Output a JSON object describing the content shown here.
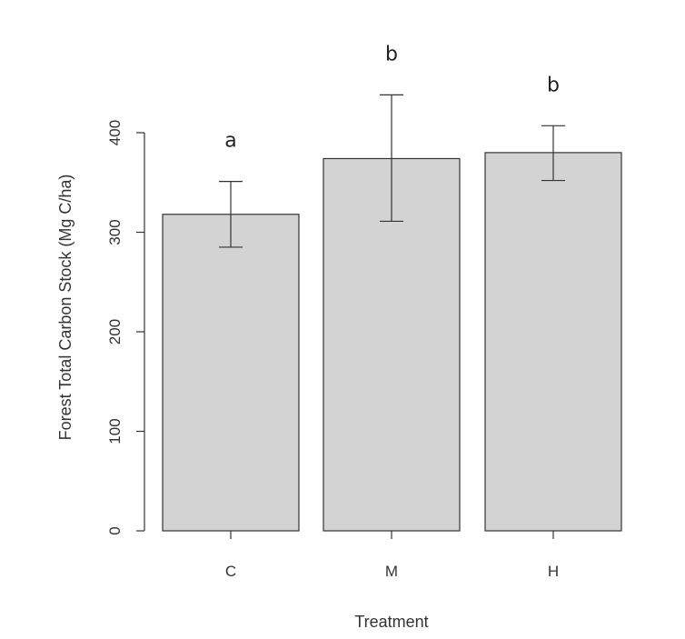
{
  "chart_data": {
    "type": "bar",
    "categories": [
      "C",
      "M",
      "H"
    ],
    "values": [
      318,
      374,
      380
    ],
    "error_low": [
      285,
      311,
      352
    ],
    "error_high": [
      351,
      438,
      407
    ],
    "significance_labels": [
      "a",
      "b",
      "b"
    ],
    "xlabel": "Treatment",
    "ylabel": "Forest Total Carbon Stock (Mg C/ha)",
    "ylim": [
      0,
      400
    ],
    "yticks": [
      0,
      100,
      200,
      300,
      400
    ],
    "bar_color": "#d3d3d3",
    "grid": false,
    "legend": "none"
  }
}
